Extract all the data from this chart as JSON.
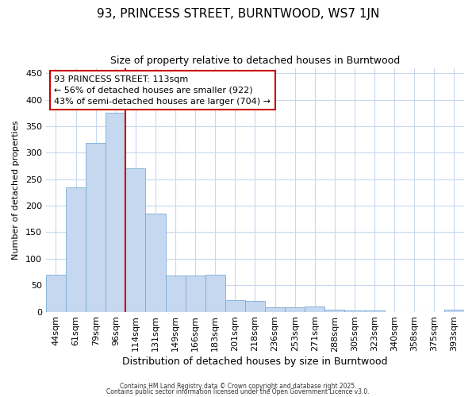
{
  "title": "93, PRINCESS STREET, BURNTWOOD, WS7 1JN",
  "subtitle": "Size of property relative to detached houses in Burntwood",
  "xlabel": "Distribution of detached houses by size in Burntwood",
  "ylabel": "Number of detached properties",
  "categories": [
    "44sqm",
    "61sqm",
    "79sqm",
    "96sqm",
    "114sqm",
    "131sqm",
    "149sqm",
    "166sqm",
    "183sqm",
    "201sqm",
    "218sqm",
    "236sqm",
    "253sqm",
    "271sqm",
    "288sqm",
    "305sqm",
    "323sqm",
    "340sqm",
    "358sqm",
    "375sqm",
    "393sqm"
  ],
  "values": [
    70,
    235,
    318,
    375,
    270,
    185,
    68,
    68,
    70,
    22,
    20,
    9,
    8,
    10,
    4,
    3,
    3,
    0,
    0,
    0,
    4
  ],
  "bar_color": "#c5d8f0",
  "bar_edge_color": "#7aadd4",
  "bar_alpha": 1.0,
  "vline_index": 4,
  "vline_color": "#cc0000",
  "ylim": [
    0,
    460
  ],
  "yticks": [
    0,
    50,
    100,
    150,
    200,
    250,
    300,
    350,
    400,
    450
  ],
  "annotation_title": "93 PRINCESS STREET: 113sqm",
  "annotation_line1": "← 56% of detached houses are smaller (922)",
  "annotation_line2": "43% of semi-detached houses are larger (704) →",
  "annotation_box_facecolor": "#ffffff",
  "annotation_box_edgecolor": "#cc0000",
  "figure_facecolor": "#ffffff",
  "plot_facecolor": "#ffffff",
  "grid_color": "#c8d8ee",
  "footer1": "Contains HM Land Registry data © Crown copyright and database right 2025.",
  "footer2": "Contains public sector information licensed under the Open Government Licence v3.0.",
  "title_fontsize": 11,
  "subtitle_fontsize": 9,
  "xlabel_fontsize": 9,
  "ylabel_fontsize": 8,
  "tick_fontsize": 8,
  "annotation_fontsize": 8
}
